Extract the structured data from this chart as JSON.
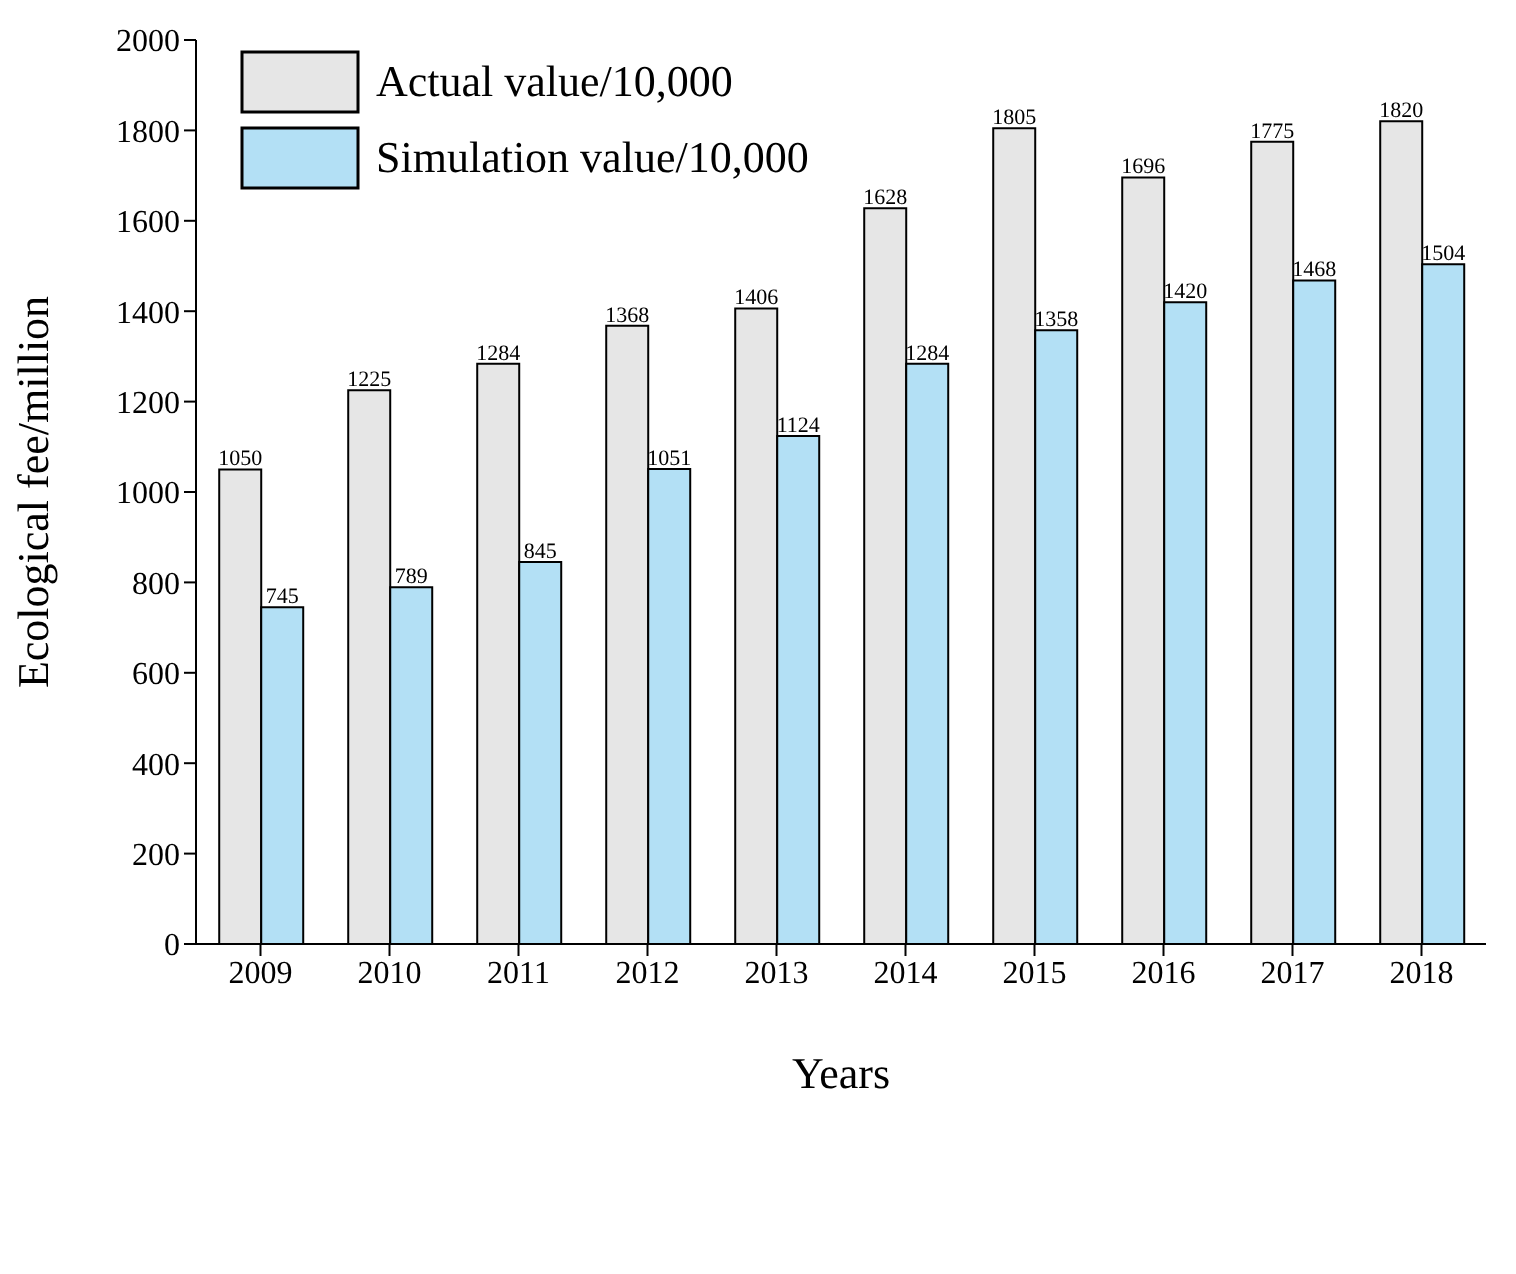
{
  "chart_data": {
    "type": "bar",
    "xlabel": "Years",
    "ylabel": "Ecological fee/million",
    "categories": [
      "2009",
      "2010",
      "2011",
      "2012",
      "2013",
      "2014",
      "2015",
      "2016",
      "2017",
      "2018"
    ],
    "series": [
      {
        "name": "Actual value/10,000",
        "color": "#e6e6e6",
        "values": [
          1050,
          1225,
          1284,
          1368,
          1406,
          1628,
          1805,
          1696,
          1775,
          1820
        ]
      },
      {
        "name": "Simulation value/10,000",
        "color": "#b3e0f5",
        "values": [
          745,
          789,
          845,
          1051,
          1124,
          1284,
          1358,
          1420,
          1468,
          1504
        ]
      }
    ],
    "ylim": [
      0,
      2000
    ],
    "yticks": [
      0,
      200,
      400,
      600,
      800,
      1000,
      1200,
      1400,
      1600,
      1800,
      2000
    ],
    "grid": false,
    "legend": "top left",
    "data_labels": true
  }
}
